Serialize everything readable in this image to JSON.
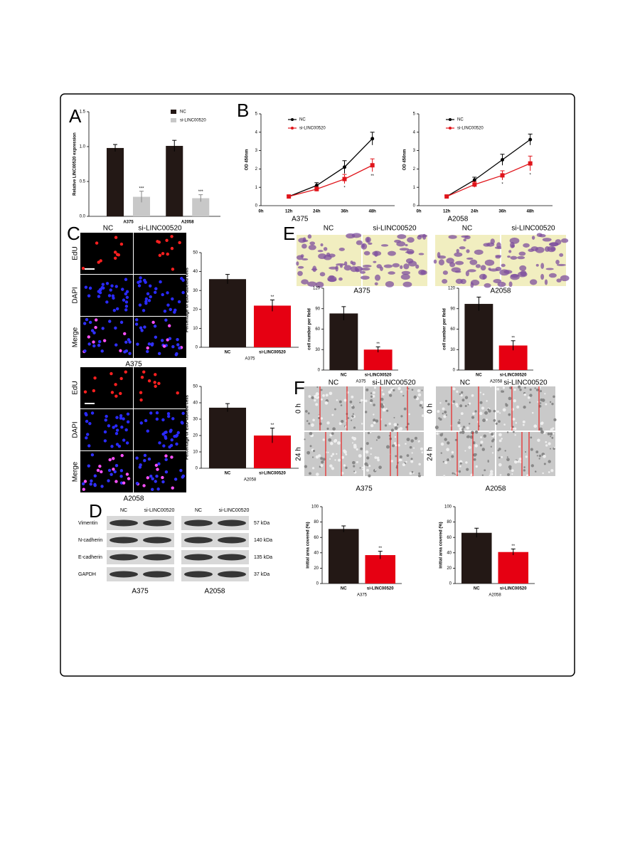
{
  "figure": {
    "panel_letters": [
      "A",
      "B",
      "C",
      "D",
      "E",
      "F"
    ],
    "panel_C": {
      "columns": [
        "NC",
        "si-LINC00520"
      ],
      "rows": [
        "EdU",
        "DAPI",
        "Merge"
      ],
      "cell_lines": [
        "A375",
        "A2058"
      ]
    },
    "panel_D": {
      "columns": [
        "NC",
        "si-LINC00520"
      ],
      "proteins": [
        "Vimentin",
        "N-cadherin",
        "E-cadherin",
        "GAPDH"
      ],
      "sizes": [
        "57 kDa",
        "140 kDa",
        "135 kDa",
        "37 kDa"
      ],
      "cell_lines": [
        "A375",
        "A2058"
      ]
    },
    "panel_E": {
      "columns": [
        "NC",
        "si-LINC00520"
      ],
      "cell_lines": [
        "A375",
        "A2058"
      ]
    },
    "panel_F": {
      "columns": [
        "NC",
        "si-LINC00520"
      ],
      "rows": [
        "0 h",
        "24 h"
      ],
      "cell_lines": [
        "A375",
        "A2058"
      ]
    }
  },
  "chart_data": [
    {
      "type": "grouped_bar",
      "ylabel": "Relative LINC00520 expression",
      "categories": [
        "A375",
        "A2058"
      ],
      "series": [
        {
          "name": "NC",
          "color": "#231815",
          "values": [
            0.98,
            1.01
          ],
          "errors": [
            0.05,
            0.08
          ]
        },
        {
          "name": "si-LINC00520",
          "color": "#c8c8c8",
          "values": [
            0.28,
            0.26
          ],
          "errors": [
            0.08,
            0.05
          ],
          "annotations": [
            "***",
            "***"
          ]
        }
      ],
      "ylim": [
        0,
        1.5
      ],
      "yticks": [
        {
          "value": 0,
          "label": "0.0"
        },
        0.5,
        {
          "value": 1,
          "label": "1.0"
        },
        {
          "value": 1.5,
          "label": "1.5"
        }
      ]
    },
    {
      "type": "line",
      "ylabel": "OD 450nm",
      "xlabel": "A375",
      "categories": [
        "0h",
        "12h",
        "24h",
        "36h",
        "48h"
      ],
      "series": [
        {
          "name": "NC",
          "color": "#000000",
          "values": [
            null,
            0.5,
            1.1,
            2.1,
            3.65
          ],
          "errors": [
            null,
            0.05,
            0.15,
            0.35,
            0.35
          ]
        },
        {
          "name": "si-LINC00520",
          "color": "#e0151b",
          "values": [
            null,
            0.5,
            0.9,
            1.45,
            2.2
          ],
          "errors": [
            null,
            0.05,
            0.12,
            0.25,
            0.35
          ],
          "annotations": [
            null,
            null,
            null,
            "*",
            "**"
          ]
        }
      ],
      "ylim": [
        0,
        5
      ],
      "yticks": [
        0,
        1,
        2,
        3,
        4,
        5
      ]
    },
    {
      "type": "line",
      "ylabel": "OD 450nm",
      "xlabel": "A2058",
      "categories": [
        "0h",
        "12h",
        "24h",
        "36h",
        "48h"
      ],
      "series": [
        {
          "name": "NC",
          "color": "#000000",
          "values": [
            null,
            0.5,
            1.4,
            2.5,
            3.6
          ],
          "errors": [
            null,
            0.05,
            0.15,
            0.3,
            0.3
          ]
        },
        {
          "name": "si-LINC00520",
          "color": "#e0151b",
          "values": [
            null,
            0.5,
            1.15,
            1.65,
            2.3
          ],
          "errors": [
            null,
            0.05,
            0.15,
            0.25,
            0.4
          ],
          "annotations": [
            null,
            null,
            null,
            "*",
            "*"
          ]
        }
      ],
      "ylim": [
        0,
        5
      ],
      "yticks": [
        0,
        1,
        2,
        3,
        4,
        5
      ]
    },
    {
      "type": "bar",
      "ylabel": "Percentage of EdU-labeled cells",
      "xlabel": "A375",
      "categories": [
        "NC",
        "si-LINC00520"
      ],
      "values": [
        36,
        22
      ],
      "errors": [
        2.5,
        3
      ],
      "colors": [
        "#231815",
        "#e60012"
      ],
      "annotations": [
        null,
        "**"
      ],
      "ylim": [
        0,
        50
      ],
      "yticks": [
        0,
        10,
        20,
        30,
        40,
        50
      ]
    },
    {
      "type": "bar",
      "ylabel": "Percentage of EdU-labeled cells",
      "xlabel": "A2058",
      "categories": [
        "NC",
        "si-LINC00520"
      ],
      "values": [
        37,
        20
      ],
      "errors": [
        2.5,
        4.5
      ],
      "colors": [
        "#231815",
        "#e60012"
      ],
      "annotations": [
        null,
        "**"
      ],
      "ylim": [
        0,
        50
      ],
      "yticks": [
        0,
        10,
        20,
        30,
        40,
        50
      ]
    },
    {
      "type": "bar",
      "ylabel": "cell number per field",
      "xlabel": "A375",
      "categories": [
        "NC",
        "si-LINC00520"
      ],
      "values": [
        83,
        30
      ],
      "errors": [
        10,
        4
      ],
      "colors": [
        "#231815",
        "#e60012"
      ],
      "annotations": [
        null,
        "**"
      ],
      "ylim": [
        0,
        120
      ],
      "yticks": [
        0,
        30,
        60,
        90,
        120
      ]
    },
    {
      "type": "bar",
      "ylabel": "cell number per field",
      "xlabel": "A2058",
      "categories": [
        "NC",
        "si-LINC00520"
      ],
      "values": [
        97,
        36
      ],
      "errors": [
        10,
        7
      ],
      "colors": [
        "#231815",
        "#e60012"
      ],
      "annotations": [
        null,
        "**"
      ],
      "ylim": [
        0,
        120
      ],
      "yticks": [
        0,
        30,
        60,
        90,
        120
      ]
    },
    {
      "type": "bar",
      "ylabel": "initial area covered (%)",
      "xlabel": "A375",
      "categories": [
        "NC",
        "si-LINC00520"
      ],
      "values": [
        71,
        37
      ],
      "errors": [
        4,
        5
      ],
      "colors": [
        "#231815",
        "#e60012"
      ],
      "annotations": [
        null,
        "**"
      ],
      "ylim": [
        0,
        100
      ],
      "yticks": [
        0,
        20,
        40,
        60,
        80,
        100
      ]
    },
    {
      "type": "bar",
      "ylabel": "initial area covered (%)",
      "xlabel": "A2058",
      "categories": [
        "NC",
        "si-LINC00520"
      ],
      "values": [
        66,
        41
      ],
      "errors": [
        6,
        4
      ],
      "colors": [
        "#231815",
        "#e60012"
      ],
      "annotations": [
        null,
        "**"
      ],
      "ylim": [
        0,
        100
      ],
      "yticks": [
        0,
        20,
        40,
        60,
        80,
        100
      ]
    }
  ]
}
